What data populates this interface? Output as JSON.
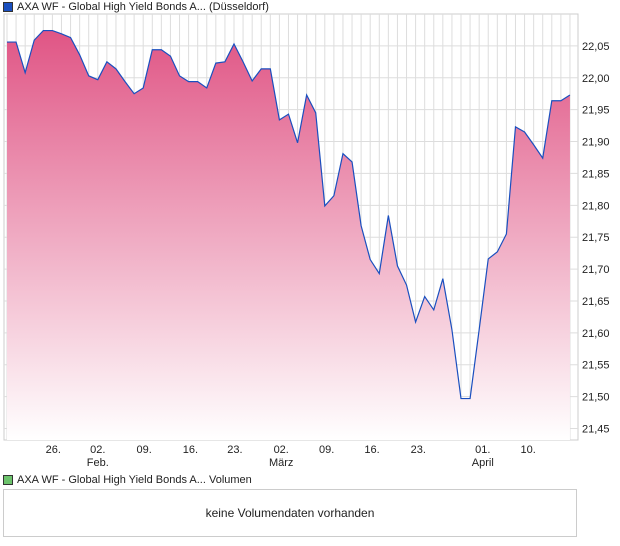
{
  "legend_price": {
    "label": "AXA WF - Global High Yield Bonds A... (Düsseldorf)",
    "color": "#1a4fbf"
  },
  "legend_volume": {
    "label": "AXA WF - Global High Yield Bonds A... Volumen",
    "color": "#6cc36c"
  },
  "volume_message": "keine Volumendaten vorhanden",
  "chart_data": {
    "type": "area",
    "title": "AXA WF - Global High Yield Bonds A... (Düsseldorf)",
    "ylim": [
      21.432,
      22.1
    ],
    "yticks": [
      "22,05",
      "22,00",
      "21,95",
      "21,90",
      "21,85",
      "21,80",
      "21,75",
      "21,70",
      "21,65",
      "21,60",
      "21,55",
      "21,50",
      "21,45"
    ],
    "ytick_values": [
      22.05,
      22.0,
      21.95,
      21.9,
      21.85,
      21.8,
      21.75,
      21.7,
      21.65,
      21.6,
      21.55,
      21.5,
      21.45
    ],
    "xticks": [
      {
        "i": 5.1,
        "label": "26.",
        "sub": ""
      },
      {
        "i": 10,
        "label": "02.",
        "sub": "Feb."
      },
      {
        "i": 15.1,
        "label": "09.",
        "sub": ""
      },
      {
        "i": 20.2,
        "label": "16.",
        "sub": ""
      },
      {
        "i": 25.1,
        "label": "23.",
        "sub": ""
      },
      {
        "i": 30.2,
        "label": "02.",
        "sub": "März"
      },
      {
        "i": 35.2,
        "label": "09.",
        "sub": ""
      },
      {
        "i": 40.2,
        "label": "16.",
        "sub": ""
      },
      {
        "i": 45.3,
        "label": "23.",
        "sub": ""
      },
      {
        "i": 52.4,
        "label": "01.",
        "sub": "April"
      },
      {
        "i": 57.4,
        "label": "10.",
        "sub": ""
      }
    ],
    "values": [
      22.056,
      22.056,
      22.008,
      22.059,
      22.074,
      22.074,
      22.069,
      22.063,
      22.036,
      22.003,
      21.997,
      22.025,
      22.014,
      21.994,
      21.975,
      21.984,
      22.044,
      22.044,
      22.034,
      22.003,
      21.994,
      21.994,
      21.984,
      22.023,
      22.025,
      22.053,
      22.025,
      21.995,
      22.014,
      22.014,
      21.934,
      21.943,
      21.898,
      21.973,
      21.945,
      21.799,
      21.815,
      21.881,
      21.868,
      21.768,
      21.715,
      21.693,
      21.784,
      21.705,
      21.675,
      21.617,
      21.657,
      21.636,
      21.685,
      21.605,
      21.497,
      21.497,
      21.605,
      21.716,
      21.727,
      21.755,
      21.923,
      21.915,
      21.895,
      21.874,
      21.964,
      21.964,
      21.973
    ]
  }
}
